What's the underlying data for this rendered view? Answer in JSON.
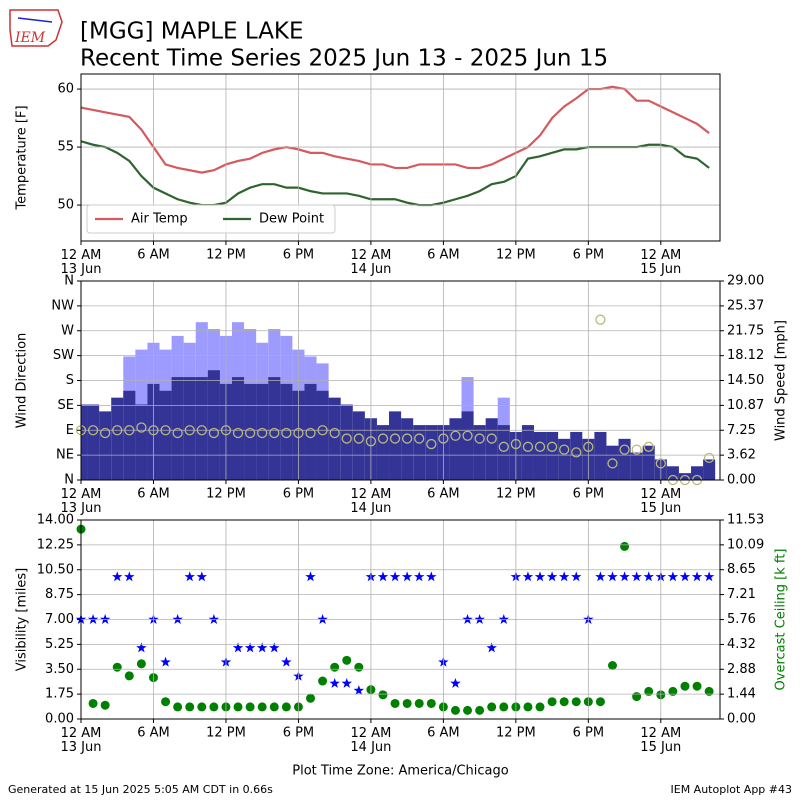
{
  "header": {
    "logo": "IEM",
    "title": [
      "[MGG] MAPLE LAKE",
      "Recent Time Series 2025 Jun 13 - 2025 Jun 15"
    ]
  },
  "footer": {
    "left": "Generated at 15 Jun 2025 5:05 AM CDT in 0.66s",
    "right": "IEM Autoplot App #43"
  },
  "chart_data": [
    {
      "type": "line",
      "ylabel": "Temperature [F]",
      "grid": true,
      "legend": "lower left",
      "x": [
        0,
        1,
        2,
        3,
        4,
        5,
        6,
        7,
        8,
        9,
        10,
        11,
        12,
        13,
        14,
        15,
        16,
        17,
        18,
        19,
        20,
        21,
        22,
        23,
        24,
        25,
        26,
        27,
        28,
        29,
        30,
        31,
        32,
        33,
        34,
        35,
        36,
        37,
        38,
        39,
        40,
        41,
        42,
        43,
        44,
        45,
        46,
        47,
        48,
        49,
        50,
        51,
        52
      ],
      "xlim": [
        0,
        52.9
      ],
      "xticks": [
        {
          "value": 0,
          "label": "12 AM\n13 Jun"
        },
        {
          "value": 6,
          "label": "6 AM"
        },
        {
          "value": 12,
          "label": "12 PM"
        },
        {
          "value": 18,
          "label": "6 PM"
        },
        {
          "value": 24,
          "label": "12 AM\n14 Jun"
        },
        {
          "value": 30,
          "label": "6 AM"
        },
        {
          "value": 36,
          "label": "12 PM"
        },
        {
          "value": 42,
          "label": "6 PM"
        },
        {
          "value": 48,
          "label": "12 AM\n15 Jun"
        }
      ],
      "ylim": [
        46.9,
        61.3
      ],
      "yticks": [
        50,
        55,
        60
      ],
      "series": [
        {
          "name": "Air Temp",
          "color": "#d6595d",
          "values": [
            58.4,
            58.2,
            58,
            57.8,
            57.6,
            56.5,
            55,
            53.5,
            53.2,
            53,
            52.8,
            53,
            53.5,
            53.8,
            54,
            54.5,
            54.8,
            55,
            54.8,
            54.5,
            54.5,
            54.2,
            54,
            53.8,
            53.5,
            53.5,
            53.2,
            53.2,
            53.5,
            53.5,
            53.5,
            53.5,
            53.2,
            53.2,
            53.5,
            54,
            54.5,
            55,
            56,
            57.5,
            58.5,
            59.2,
            60,
            60,
            60.2,
            60,
            59,
            59,
            58.5,
            58,
            57.5,
            57,
            56.2
          ]
        },
        {
          "name": "Dew Point",
          "color": "#2f642f",
          "values": [
            55.5,
            55.2,
            55,
            54.5,
            53.8,
            52.5,
            51.5,
            51,
            50.5,
            50.2,
            50,
            50,
            50.2,
            51,
            51.5,
            51.8,
            51.8,
            51.5,
            51.5,
            51.2,
            51,
            51,
            51,
            50.8,
            50.5,
            50.5,
            50.5,
            50.2,
            50,
            50,
            50.2,
            50.5,
            50.8,
            51.2,
            51.8,
            52,
            52.5,
            54,
            54.2,
            54.5,
            54.8,
            54.8,
            55,
            55,
            55,
            55,
            55,
            55.2,
            55.2,
            55,
            54.2,
            54,
            53.2
          ]
        }
      ]
    },
    {
      "type": "bar",
      "ylabel": "Wind Direction",
      "y2label": "Wind Speed [mph]",
      "grid": true,
      "x": [
        0,
        1,
        2,
        3,
        4,
        5,
        6,
        7,
        8,
        9,
        10,
        11,
        12,
        13,
        14,
        15,
        16,
        17,
        18,
        19,
        20,
        21,
        22,
        23,
        24,
        25,
        26,
        27,
        28,
        29,
        30,
        31,
        32,
        33,
        34,
        35,
        36,
        37,
        38,
        39,
        40,
        41,
        42,
        43,
        44,
        45,
        46,
        47,
        48,
        49,
        50,
        51,
        52
      ],
      "xlim": [
        0,
        52.9
      ],
      "xticks": [
        {
          "value": 0,
          "label": "12 AM\n13 Jun"
        },
        {
          "value": 6,
          "label": "6 AM"
        },
        {
          "value": 12,
          "label": "12 PM"
        },
        {
          "value": 18,
          "label": "6 PM"
        },
        {
          "value": 24,
          "label": "12 AM\n14 Jun"
        },
        {
          "value": 30,
          "label": "6 AM"
        },
        {
          "value": 36,
          "label": "12 PM"
        },
        {
          "value": 42,
          "label": "6 PM"
        },
        {
          "value": 48,
          "label": "12 AM\n15 Jun"
        }
      ],
      "ylim": [
        0,
        360
      ],
      "yticks": [
        {
          "value": 0,
          "label": "N"
        },
        {
          "value": 45,
          "label": "NE"
        },
        {
          "value": 90,
          "label": "E"
        },
        {
          "value": 135,
          "label": "SE"
        },
        {
          "value": 180,
          "label": "S"
        },
        {
          "value": 225,
          "label": "SW"
        },
        {
          "value": 270,
          "label": "W"
        },
        {
          "value": 315,
          "label": "NW"
        },
        {
          "value": 360,
          "label": "N"
        }
      ],
      "y2lim": [
        0,
        29
      ],
      "y2ticks": [
        {
          "value": 0,
          "label": "0.00"
        },
        {
          "value": 3.62,
          "label": "3.62"
        },
        {
          "value": 7.25,
          "label": "7.25"
        },
        {
          "value": 10.87,
          "label": "10.87"
        },
        {
          "value": 14.5,
          "label": "14.50"
        },
        {
          "value": 18.12,
          "label": "18.12"
        },
        {
          "value": 21.75,
          "label": "21.75"
        },
        {
          "value": 25.37,
          "label": "25.37"
        },
        {
          "value": 29,
          "label": "29.00"
        }
      ],
      "series": [
        {
          "type": "bar",
          "axis": "y2",
          "color": "#9d9bfd",
          "values": [
            null,
            null,
            null,
            null,
            18,
            19,
            20,
            19,
            21,
            20,
            23,
            22,
            21,
            23,
            22,
            20,
            22,
            21,
            19,
            18,
            17,
            null,
            null,
            null,
            null,
            null,
            null,
            null,
            null,
            null,
            null,
            null,
            15,
            null,
            null,
            12,
            null,
            null,
            null,
            null,
            null,
            null,
            null,
            null,
            null,
            null,
            null,
            null,
            null,
            null,
            null,
            null,
            null
          ]
        },
        {
          "type": "bar",
          "axis": "y2",
          "color": "#343497",
          "values": [
            11,
            11,
            10,
            12,
            13,
            11,
            14,
            13,
            15,
            15,
            15,
            16,
            14,
            15,
            14,
            14,
            15,
            14,
            13,
            14,
            13,
            12,
            11,
            10,
            9,
            8,
            10,
            9,
            8,
            8,
            8,
            9,
            10,
            8,
            9,
            8,
            7,
            8,
            7,
            7,
            6,
            7,
            6,
            7,
            5,
            6,
            4,
            5,
            3,
            2,
            1,
            2,
            3
          ]
        },
        {
          "type": "scatter",
          "color": "#b9b97c",
          "values": [
            90,
            90,
            85,
            90,
            90,
            95,
            90,
            90,
            85,
            90,
            90,
            85,
            90,
            85,
            85,
            85,
            85,
            85,
            85,
            85,
            90,
            85,
            75,
            75,
            70,
            75,
            75,
            75,
            75,
            65,
            75,
            80,
            80,
            75,
            75,
            60,
            65,
            60,
            60,
            60,
            55,
            50,
            60,
            290,
            30,
            55,
            55,
            60,
            30,
            0,
            0,
            0,
            40
          ]
        }
      ]
    },
    {
      "type": "scatter",
      "ylabel": "Visibility [miles]",
      "y2label": "Overcast Ceiling [k ft]",
      "xlabel": "Plot Time Zone: America/Chicago",
      "grid": true,
      "x": [
        0,
        1,
        2,
        3,
        4,
        5,
        6,
        7,
        8,
        9,
        10,
        11,
        12,
        13,
        14,
        15,
        16,
        17,
        18,
        19,
        20,
        21,
        22,
        23,
        24,
        25,
        26,
        27,
        28,
        29,
        30,
        31,
        32,
        33,
        34,
        35,
        36,
        37,
        38,
        39,
        40,
        41,
        42,
        43,
        44,
        45,
        46,
        47,
        48,
        49,
        50,
        51,
        52
      ],
      "xlim": [
        0,
        52.9
      ],
      "xticks": [
        {
          "value": 0,
          "label": "12 AM\n13 Jun"
        },
        {
          "value": 6,
          "label": "6 AM"
        },
        {
          "value": 12,
          "label": "12 PM"
        },
        {
          "value": 18,
          "label": "6 PM"
        },
        {
          "value": 24,
          "label": "12 AM\n14 Jun"
        },
        {
          "value": 30,
          "label": "6 AM"
        },
        {
          "value": 36,
          "label": "12 PM"
        },
        {
          "value": 42,
          "label": "6 PM"
        },
        {
          "value": 48,
          "label": "12 AM\n15 Jun"
        }
      ],
      "ylim": [
        0,
        14
      ],
      "yticks": [
        {
          "value": 0,
          "label": "0.00"
        },
        {
          "value": 1.75,
          "label": "1.75"
        },
        {
          "value": 3.5,
          "label": "3.50"
        },
        {
          "value": 5.25,
          "label": "5.25"
        },
        {
          "value": 7,
          "label": "7.00"
        },
        {
          "value": 8.75,
          "label": "8.75"
        },
        {
          "value": 10.5,
          "label": "10.50"
        },
        {
          "value": 12.25,
          "label": "12.25"
        },
        {
          "value": 14,
          "label": "14.00"
        }
      ],
      "y2lim": [
        0,
        11.53
      ],
      "y2ticks": [
        {
          "value": 0,
          "label": "0.00"
        },
        {
          "value": 1.44,
          "label": "1.44"
        },
        {
          "value": 2.88,
          "label": "2.88"
        },
        {
          "value": 4.32,
          "label": "4.32"
        },
        {
          "value": 5.76,
          "label": "5.76"
        },
        {
          "value": 7.21,
          "label": "7.21"
        },
        {
          "value": 8.65,
          "label": "8.65"
        },
        {
          "value": 10.09,
          "label": "10.09"
        },
        {
          "value": 11.53,
          "label": "11.53"
        }
      ],
      "series": [
        {
          "type": "star",
          "color": "#0000ff",
          "values": [
            7,
            7,
            7,
            10,
            10,
            5,
            7,
            4,
            7,
            10,
            10,
            7,
            4,
            5,
            5,
            5,
            5,
            4,
            3,
            10,
            7,
            2.5,
            2.5,
            2,
            10,
            10,
            10,
            10,
            10,
            10,
            4,
            2.5,
            7,
            7,
            5,
            7,
            10,
            10,
            10,
            10,
            10,
            10,
            7,
            10,
            10,
            10,
            10,
            10,
            10,
            10,
            10,
            10,
            10
          ]
        },
        {
          "type": "circle",
          "axis": "y2",
          "color": "#008000",
          "values": [
            11,
            0.9,
            0.8,
            3,
            2.5,
            3.2,
            2.4,
            1,
            0.7,
            0.7,
            0.7,
            0.7,
            0.7,
            0.7,
            0.7,
            0.7,
            0.7,
            0.7,
            0.7,
            1.2,
            2.2,
            3,
            3.4,
            3,
            1.7,
            1.4,
            0.9,
            0.9,
            0.9,
            0.9,
            0.7,
            0.5,
            0.5,
            0.5,
            0.7,
            0.7,
            0.7,
            0.7,
            0.7,
            1,
            1,
            1,
            1,
            1,
            3.1,
            10,
            1.3,
            1.6,
            1.4,
            1.6,
            1.9,
            1.9,
            1.6
          ]
        }
      ]
    }
  ]
}
